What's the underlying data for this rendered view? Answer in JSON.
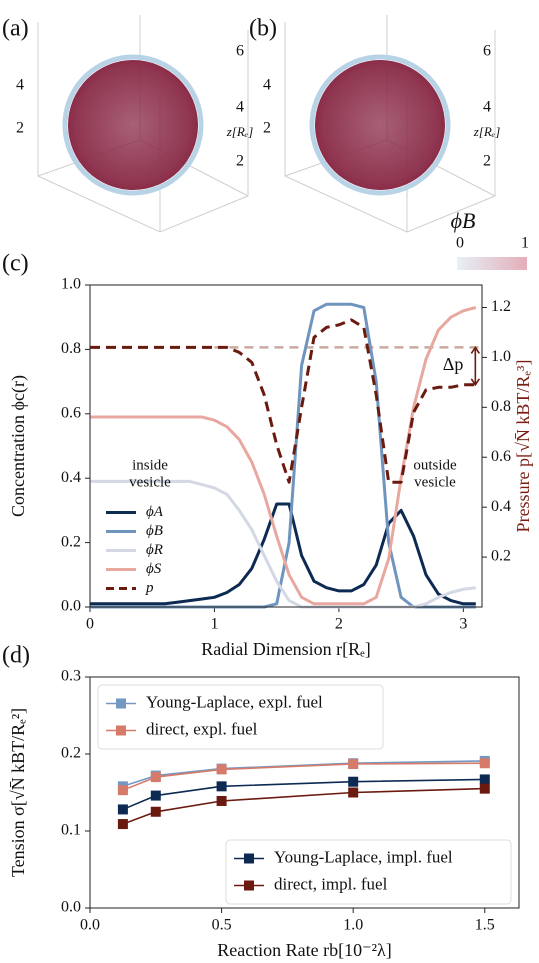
{
  "chart_data": [
    {
      "type": "render",
      "panel_label": "(a)",
      "color": "#8a2c48",
      "rim_color": "#b9d3e6",
      "left_ticks": [
        4,
        2
      ],
      "right_ticks": [
        6,
        4,
        2
      ],
      "z_label": "z[Rₑ]"
    },
    {
      "type": "render",
      "panel_label": "(b)",
      "color": "#8a2c48",
      "rim_color": "#b9d3e6",
      "left_ticks": [
        4,
        2
      ],
      "right_ticks": [
        6,
        4,
        2
      ],
      "z_label": "z[Rₑ]",
      "colorbar": {
        "label": "ϕB",
        "ticks": [
          0,
          1
        ],
        "colors": [
          "#e6f0f6",
          "#e3aeb9"
        ]
      }
    },
    {
      "type": "line",
      "panel_label": "(c)",
      "xlabel": "Radial Dimension r[Rₑ]",
      "ylabel": "Concentration ϕc(r)",
      "y2label": "Pressure p[√N̄ kBT/Rₑ³]",
      "y2label_color": "#7a1d12",
      "xlim": [
        0,
        3.15
      ],
      "xticks": [
        0,
        1,
        2,
        3
      ],
      "ylim": [
        0,
        1
      ],
      "yticks": [
        {
          "value": 0,
          "label": "0.0"
        },
        0.2,
        0.4,
        0.6,
        0.8,
        {
          "value": 1,
          "label": "1.0"
        }
      ],
      "y2lim": [
        0,
        1.29
      ],
      "y2ticks": [
        0.2,
        0.4,
        0.6,
        0.8,
        {
          "value": 1,
          "label": "1.0"
        },
        1.2
      ],
      "legend_loc": "lower left",
      "x": [
        0,
        0.1,
        0.2,
        0.3,
        0.4,
        0.5,
        0.6,
        0.7,
        0.8,
        0.9,
        1.0,
        1.1,
        1.2,
        1.3,
        1.4,
        1.5,
        1.6,
        1.7,
        1.8,
        1.9,
        2.0,
        2.1,
        2.2,
        2.3,
        2.4,
        2.5,
        2.6,
        2.7,
        2.8,
        2.9,
        3.0,
        3.1
      ],
      "series": [
        {
          "name": "ϕA",
          "color": "#0d2a52",
          "values": [
            0.01,
            0.01,
            0.01,
            0.01,
            0.01,
            0.01,
            0.01,
            0.015,
            0.02,
            0.025,
            0.03,
            0.045,
            0.07,
            0.12,
            0.21,
            0.32,
            0.32,
            0.16,
            0.08,
            0.06,
            0.05,
            0.05,
            0.07,
            0.13,
            0.26,
            0.3,
            0.22,
            0.1,
            0.04,
            0.02,
            0.01,
            0.01
          ]
        },
        {
          "name": "ϕB",
          "color": "#6f95bf",
          "values": [
            0,
            0,
            0,
            0,
            0,
            0,
            0,
            0,
            0,
            0,
            0,
            0,
            0,
            0,
            0,
            0.01,
            0.2,
            0.75,
            0.92,
            0.94,
            0.94,
            0.94,
            0.93,
            0.7,
            0.2,
            0.03,
            0,
            0,
            0,
            0,
            0,
            0
          ]
        },
        {
          "name": "ϕR",
          "color": "#d3d8e4",
          "values": [
            0.39,
            0.39,
            0.39,
            0.39,
            0.39,
            0.39,
            0.39,
            0.39,
            0.39,
            0.38,
            0.37,
            0.35,
            0.3,
            0.24,
            0.16,
            0.08,
            0.02,
            0,
            0,
            0,
            0,
            0,
            0,
            0,
            0,
            0,
            0,
            0.01,
            0.03,
            0.045,
            0.055,
            0.06
          ]
        },
        {
          "name": "ϕS",
          "color": "#e8a8a0",
          "values": [
            0.59,
            0.59,
            0.59,
            0.59,
            0.59,
            0.59,
            0.59,
            0.59,
            0.59,
            0.59,
            0.58,
            0.56,
            0.52,
            0.45,
            0.35,
            0.22,
            0.1,
            0.03,
            0.01,
            0.01,
            0.01,
            0.01,
            0.01,
            0.03,
            0.15,
            0.4,
            0.62,
            0.77,
            0.86,
            0.9,
            0.92,
            0.93
          ]
        },
        {
          "name": "p",
          "color": "#6b1a10",
          "dashed": true,
          "axis": "y2",
          "values": [
            1.04,
            1.04,
            1.04,
            1.04,
            1.04,
            1.04,
            1.04,
            1.04,
            1.04,
            1.04,
            1.04,
            1.04,
            1.02,
            0.98,
            0.85,
            0.65,
            0.5,
            0.8,
            1.08,
            1.12,
            1.13,
            1.15,
            1.12,
            0.85,
            0.5,
            0.5,
            0.78,
            0.87,
            0.88,
            0.88,
            0.89,
            0.89
          ]
        }
      ],
      "reference": {
        "value": 1.04,
        "from": 1.0,
        "axis": "y2",
        "color": "#c9a9a0",
        "label": "Δp"
      },
      "annotations": [
        [
          "inside",
          "vesicle"
        ],
        [
          "outside",
          "vesicle"
        ]
      ]
    },
    {
      "type": "line",
      "panel_label": "(d)",
      "markers": true,
      "xlabel": "Reaction Rate rb[10⁻²λ]",
      "ylabel": "Tension σ[√N̄ kBT/Rₑ²]",
      "xlim": [
        0,
        1.63
      ],
      "xticks": [
        {
          "value": 0,
          "label": "0.0"
        },
        0.5,
        {
          "value": 1,
          "label": "1.0"
        },
        1.5
      ],
      "ylim": [
        0,
        0.3
      ],
      "yticks": [
        {
          "value": 0,
          "label": "0.0"
        },
        0.1,
        0.2,
        0.3
      ],
      "x": [
        0.125,
        0.25,
        0.5,
        1.0,
        1.5
      ],
      "series": [
        {
          "name": "Young-Laplace, expl. fuel",
          "color": "#7298c2",
          "legend_loc": "upper left",
          "values": [
            0.158,
            0.172,
            0.181,
            0.188,
            0.191
          ]
        },
        {
          "name": "direct, expl. fuel",
          "color": "#d67a6a",
          "legend_loc": "upper left",
          "values": [
            0.153,
            0.17,
            0.18,
            0.187,
            0.188
          ]
        },
        {
          "name": "Young-Laplace, impl. fuel",
          "color": "#0d2a52",
          "legend_loc": "lower right",
          "values": [
            0.128,
            0.146,
            0.158,
            0.164,
            0.167
          ]
        },
        {
          "name": "direct, impl. fuel",
          "color": "#6b1a10",
          "legend_loc": "lower right",
          "values": [
            0.109,
            0.125,
            0.139,
            0.15,
            0.155
          ]
        }
      ]
    }
  ]
}
